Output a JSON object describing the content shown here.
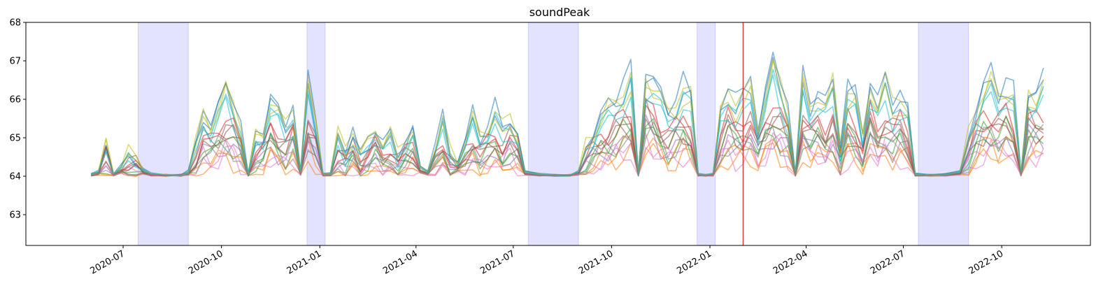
{
  "chart_data": {
    "type": "line",
    "title": "soundPeak",
    "xlabel": "",
    "ylabel": "",
    "xlim": [
      "2020-04-01",
      "2022-12-23"
    ],
    "ylim": [
      62.2,
      68
    ],
    "x_ticks": [
      "2020-07",
      "2020-10",
      "2021-01",
      "2021-04",
      "2021-07",
      "2021-10",
      "2022-01",
      "2022-04",
      "2022-07",
      "2022-10"
    ],
    "y_ticks": [
      63,
      64,
      65,
      66,
      67,
      68
    ],
    "grid": false,
    "legend": "none",
    "shaded_periods": [
      {
        "start": "2020-07-15",
        "end": "2020-08-31"
      },
      {
        "start": "2020-12-20",
        "end": "2021-01-06"
      },
      {
        "start": "2021-07-15",
        "end": "2021-08-31"
      },
      {
        "start": "2021-12-20",
        "end": "2022-01-06"
      },
      {
        "start": "2022-07-15",
        "end": "2022-08-31"
      }
    ],
    "shade_color": "#0000ff",
    "marker_line": {
      "date": "2022-02-01",
      "color": "#d62728"
    },
    "series_colors": [
      "#1f77b4",
      "#ff7f0e",
      "#2ca02c",
      "#d62728",
      "#9467bd",
      "#8c564b",
      "#e377c2",
      "#bcbd22",
      "#17becf",
      "#1f77b4",
      "#ff7f0e",
      "#2ca02c",
      "#d62728",
      "#8c564b",
      "#e377c2",
      "#bcbd22",
      "#17becf",
      "#7f7f7f"
    ],
    "series_phase": [
      0.0,
      0.35,
      0.7,
      1.05,
      1.4,
      1.75,
      2.1,
      2.45,
      2.8,
      3.15,
      3.5,
      3.85,
      4.2,
      4.55,
      4.9,
      5.25,
      5.6,
      5.95
    ],
    "series_spread": [
      1.25,
      0.45,
      0.6,
      0.75,
      0.55,
      0.7,
      0.5,
      1.15,
      1.05,
      1.3,
      0.5,
      0.65,
      0.8,
      0.6,
      0.45,
      1.1,
      1.0,
      0.55
    ],
    "series_offset": [
      0.0,
      -0.2,
      -0.1,
      0.05,
      -0.05,
      0.1,
      -0.15,
      0.15,
      0.05,
      0.0,
      -0.25,
      -0.12,
      0.0,
      0.08,
      -0.2,
      0.1,
      0.0,
      -0.08
    ],
    "baseline": [
      [
        "2020-06-01",
        64.05
      ],
      [
        "2020-06-08",
        64.1
      ],
      [
        "2020-06-15",
        64.7
      ],
      [
        "2020-06-22",
        64.05
      ],
      [
        "2020-06-29",
        64.2
      ],
      [
        "2020-07-06",
        64.4
      ],
      [
        "2020-07-13",
        64.35
      ],
      [
        "2020-07-20",
        64.15
      ],
      [
        "2020-07-27",
        64.05
      ],
      [
        "2020-08-10",
        64.02
      ],
      [
        "2020-08-24",
        64.02
      ],
      [
        "2020-08-31",
        64.1
      ],
      [
        "2020-09-07",
        64.6
      ],
      [
        "2020-09-14",
        65.3
      ],
      [
        "2020-09-21",
        65.1
      ],
      [
        "2020-09-28",
        65.4
      ],
      [
        "2020-10-05",
        65.8
      ],
      [
        "2020-10-12",
        65.5
      ],
      [
        "2020-10-19",
        65.0
      ],
      [
        "2020-10-26",
        64.05
      ],
      [
        "2020-11-02",
        64.8
      ],
      [
        "2020-11-09",
        64.9
      ],
      [
        "2020-11-16",
        65.6
      ],
      [
        "2020-11-23",
        65.3
      ],
      [
        "2020-11-30",
        65.0
      ],
      [
        "2020-12-07",
        65.4
      ],
      [
        "2020-12-14",
        64.1
      ],
      [
        "2020-12-21",
        65.9
      ],
      [
        "2020-12-28",
        65.2
      ],
      [
        "2021-01-04",
        64.05
      ],
      [
        "2021-01-11",
        64.05
      ],
      [
        "2021-01-18",
        64.8
      ],
      [
        "2021-01-25",
        64.5
      ],
      [
        "2021-02-01",
        64.9
      ],
      [
        "2021-02-08",
        64.4
      ],
      [
        "2021-02-15",
        64.7
      ],
      [
        "2021-02-22",
        65.0
      ],
      [
        "2021-03-01",
        64.6
      ],
      [
        "2021-03-08",
        64.8
      ],
      [
        "2021-03-15",
        64.4
      ],
      [
        "2021-03-22",
        64.7
      ],
      [
        "2021-03-29",
        64.9
      ],
      [
        "2021-04-05",
        64.2
      ],
      [
        "2021-04-12",
        64.1
      ],
      [
        "2021-04-19",
        64.6
      ],
      [
        "2021-04-26",
        65.1
      ],
      [
        "2021-05-03",
        64.4
      ],
      [
        "2021-05-10",
        64.3
      ],
      [
        "2021-05-17",
        64.7
      ],
      [
        "2021-05-24",
        65.2
      ],
      [
        "2021-05-31",
        64.8
      ],
      [
        "2021-06-07",
        65.0
      ],
      [
        "2021-06-14",
        65.3
      ],
      [
        "2021-06-21",
        64.9
      ],
      [
        "2021-06-28",
        65.2
      ],
      [
        "2021-07-05",
        64.9
      ],
      [
        "2021-07-12",
        64.1
      ],
      [
        "2021-07-26",
        64.05
      ],
      [
        "2021-08-09",
        64.02
      ],
      [
        "2021-08-23",
        64.02
      ],
      [
        "2021-08-31",
        64.1
      ],
      [
        "2021-09-07",
        64.6
      ],
      [
        "2021-09-14",
        64.9
      ],
      [
        "2021-09-21",
        65.2
      ],
      [
        "2021-09-28",
        65.4
      ],
      [
        "2021-10-05",
        65.6
      ],
      [
        "2021-10-12",
        65.8
      ],
      [
        "2021-10-19",
        66.0
      ],
      [
        "2021-10-26",
        64.05
      ],
      [
        "2021-11-02",
        66.2
      ],
      [
        "2021-11-09",
        66.0
      ],
      [
        "2021-11-16",
        65.6
      ],
      [
        "2021-11-23",
        65.3
      ],
      [
        "2021-11-30",
        65.5
      ],
      [
        "2021-12-07",
        65.8
      ],
      [
        "2021-12-14",
        65.6
      ],
      [
        "2021-12-21",
        64.05
      ],
      [
        "2021-12-28",
        64.02
      ],
      [
        "2022-01-04",
        64.05
      ],
      [
        "2022-01-11",
        65.3
      ],
      [
        "2022-01-18",
        65.8
      ],
      [
        "2022-01-25",
        65.5
      ],
      [
        "2022-02-01",
        65.6
      ],
      [
        "2022-02-08",
        65.9
      ],
      [
        "2022-02-15",
        65.0
      ],
      [
        "2022-02-22",
        65.7
      ],
      [
        "2022-03-01",
        66.3
      ],
      [
        "2022-03-08",
        65.9
      ],
      [
        "2022-03-15",
        65.4
      ],
      [
        "2022-03-22",
        64.05
      ],
      [
        "2022-03-29",
        66.0
      ],
      [
        "2022-04-05",
        65.5
      ],
      [
        "2022-04-12",
        65.7
      ],
      [
        "2022-04-19",
        65.4
      ],
      [
        "2022-04-26",
        65.9
      ],
      [
        "2022-05-03",
        64.6
      ],
      [
        "2022-05-10",
        65.8
      ],
      [
        "2022-05-17",
        65.6
      ],
      [
        "2022-05-24",
        64.8
      ],
      [
        "2022-05-31",
        66.0
      ],
      [
        "2022-06-07",
        65.4
      ],
      [
        "2022-06-14",
        65.9
      ],
      [
        "2022-06-21",
        65.5
      ],
      [
        "2022-06-28",
        65.7
      ],
      [
        "2022-07-05",
        65.3
      ],
      [
        "2022-07-12",
        64.05
      ],
      [
        "2022-07-26",
        64.02
      ],
      [
        "2022-08-09",
        64.05
      ],
      [
        "2022-08-23",
        64.1
      ],
      [
        "2022-08-31",
        64.8
      ],
      [
        "2022-09-07",
        65.4
      ],
      [
        "2022-09-14",
        65.8
      ],
      [
        "2022-09-21",
        66.0
      ],
      [
        "2022-09-28",
        65.7
      ],
      [
        "2022-10-05",
        65.9
      ],
      [
        "2022-10-12",
        65.6
      ],
      [
        "2022-10-19",
        64.05
      ],
      [
        "2022-10-26",
        65.8
      ],
      [
        "2022-11-02",
        65.7
      ],
      [
        "2022-11-09",
        65.9
      ]
    ]
  }
}
